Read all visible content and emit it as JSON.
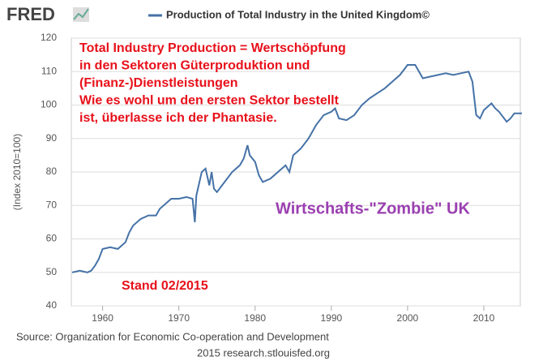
{
  "chart_data": {
    "type": "line",
    "logo": "FRED",
    "ylabel": "(Index 2010=100)",
    "source": "Source: Organization for Economic Co-operation and Development",
    "credit": "2015 research.stlouisfed.org",
    "annotations_red": [
      "Total Industry Production = Wertschöpfung",
      "in den Sektoren Güterproduktion und",
      "(Finanz-)Dienstleistungen",
      "Wie es wohl um den ersten Sektor bestellt",
      "ist, überlasse ich der Phantasie."
    ],
    "annotation_zombie": "Wirtschafts-\"Zombie\" UK",
    "annotation_stand": "Stand 02/2015",
    "xlim": [
      1956,
      2015
    ],
    "xticks": [
      1960,
      1970,
      1980,
      1990,
      2000,
      2010
    ],
    "ylim": [
      40,
      120
    ],
    "yticks": [
      40,
      50,
      60,
      70,
      80,
      90,
      100,
      110,
      120
    ],
    "grid": true,
    "x": [
      1956,
      1957,
      1958,
      1958.5,
      1959,
      1959.5,
      1960,
      1961,
      1962,
      1962.5,
      1963,
      1963.5,
      1964,
      1965,
      1966,
      1967,
      1967.5,
      1968,
      1969,
      1970,
      1971,
      1971.8,
      1972.1,
      1972.3,
      1973,
      1973.5,
      1974,
      1974.3,
      1974.6,
      1975,
      1976,
      1977,
      1978,
      1978.5,
      1979,
      1979.3,
      1980,
      1980.5,
      1981,
      1982,
      1983,
      1984,
      1984.5,
      1985,
      1986,
      1987,
      1988,
      1989,
      1990,
      1990.5,
      1991,
      1992,
      1993,
      1994,
      1995,
      1996,
      1997,
      1998,
      1999,
      2000,
      2001,
      2001.5,
      2002,
      2003,
      2004,
      2005,
      2006,
      2007,
      2008,
      2008.5,
      2009,
      2009.5,
      2010,
      2011,
      2011.5,
      2012,
      2013,
      2013.5,
      2014,
      2015
    ],
    "series": [
      {
        "name": "Production of Total Industry in the United Kingdom©",
        "color": "#4572a7",
        "values": [
          50,
          50.5,
          50,
          50.5,
          52,
          54,
          57,
          57.5,
          57,
          58,
          59,
          62,
          64,
          66,
          67,
          67,
          69,
          70,
          72,
          72,
          72.5,
          72,
          65,
          73,
          80,
          81,
          76,
          80,
          75,
          74,
          77,
          80,
          82,
          84,
          88,
          85,
          83,
          79,
          77,
          78,
          80,
          82,
          80,
          85,
          87,
          90,
          94,
          97,
          98,
          99,
          96,
          95.5,
          97,
          100,
          102,
          103.5,
          105,
          107,
          109,
          112,
          112,
          110,
          108,
          108.5,
          109,
          109.5,
          109,
          109.5,
          110,
          107,
          97,
          96,
          98.5,
          100.5,
          99,
          98,
          95,
          96,
          97.5,
          97.5
        ]
      }
    ]
  }
}
